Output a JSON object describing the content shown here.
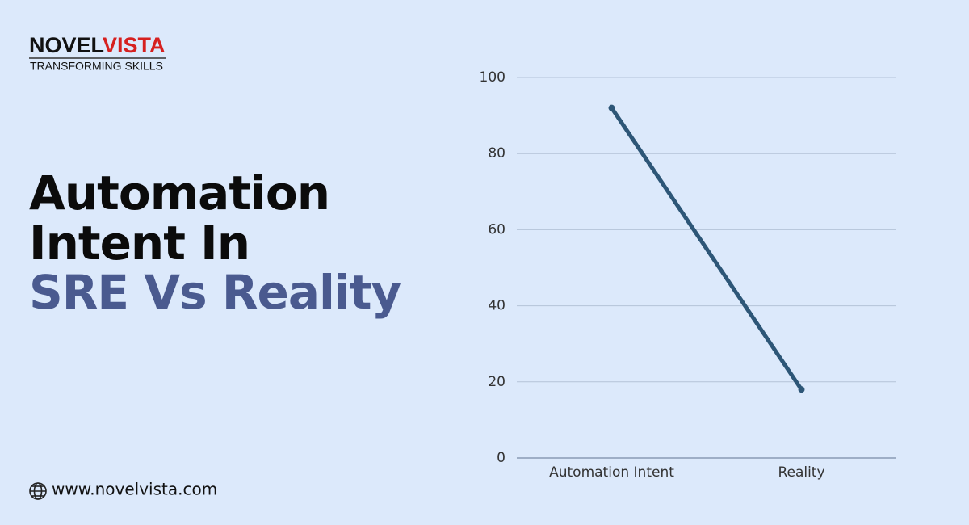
{
  "logo": {
    "brand_dark": "NOVEL",
    "brand_accent": "VISTA",
    "tagline": "TRANSFORMING SKILLS"
  },
  "headline": {
    "lines": [
      "Automation",
      "Intent In"
    ],
    "highlight": "SRE Vs Reality"
  },
  "website": "www.novelvista.com",
  "chart_data": {
    "type": "line",
    "categories": [
      "Automation Intent",
      "Reality"
    ],
    "values": [
      92,
      18
    ],
    "color": "#2d5677",
    "ylim": [
      0,
      100
    ],
    "yticks": [
      0,
      20,
      40,
      60,
      80,
      100
    ],
    "grid": true
  }
}
